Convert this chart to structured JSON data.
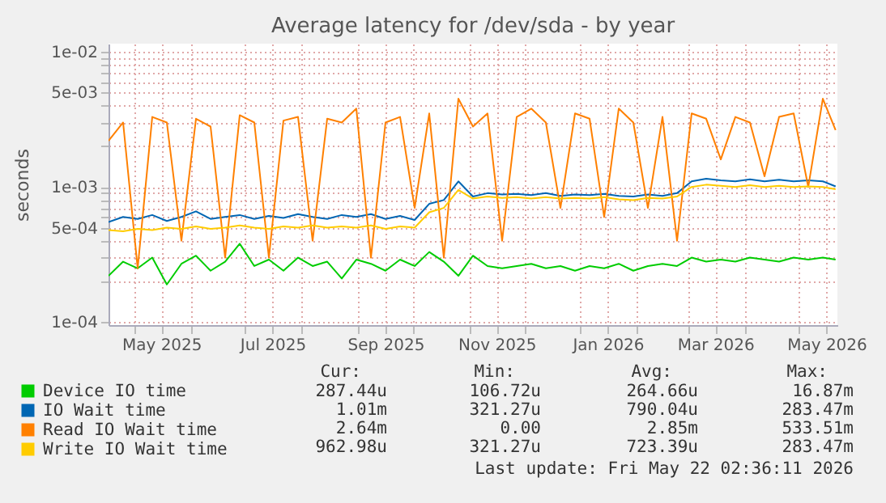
{
  "chart_data": {
    "type": "line",
    "title": "Average latency for /dev/sda - by year",
    "ylabel": "seconds",
    "log": "y",
    "grid": true,
    "legend": "bottom",
    "marker": "none",
    "line_style": "solid",
    "x": [
      "2025-04-17",
      "2025-04-25",
      "2025-05-03",
      "2025-05-11",
      "2025-05-19",
      "2025-05-27",
      "2025-06-04",
      "2025-06-12",
      "2025-06-20",
      "2025-06-28",
      "2025-07-06",
      "2025-07-14",
      "2025-07-22",
      "2025-07-30",
      "2025-08-07",
      "2025-08-15",
      "2025-08-23",
      "2025-08-31",
      "2025-09-08",
      "2025-09-16",
      "2025-09-24",
      "2025-10-02",
      "2025-10-10",
      "2025-10-18",
      "2025-10-26",
      "2025-11-03",
      "2025-11-11",
      "2025-11-19",
      "2025-11-27",
      "2025-12-05",
      "2025-12-13",
      "2025-12-21",
      "2025-12-29",
      "2026-01-06",
      "2026-01-14",
      "2026-01-22",
      "2026-01-30",
      "2026-02-07",
      "2026-02-15",
      "2026-02-23",
      "2026-03-03",
      "2026-03-11",
      "2026-03-19",
      "2026-03-27",
      "2026-04-04",
      "2026-04-12",
      "2026-04-20",
      "2026-04-28",
      "2026-05-06",
      "2026-05-14",
      "2026-05-21"
    ],
    "xlim": [
      "2025-04-17",
      "2026-05-22"
    ],
    "xticks": [
      {
        "value": "2025-05-01",
        "label": null
      },
      {
        "value": "2025-05-16",
        "label": "May 2025"
      },
      {
        "value": "2025-06-01",
        "label": null
      },
      {
        "value": "2025-07-01",
        "label": null
      },
      {
        "value": "2025-07-16",
        "label": "Jul 2025"
      },
      {
        "value": "2025-08-01",
        "label": null
      },
      {
        "value": "2025-09-01",
        "label": null
      },
      {
        "value": "2025-09-16",
        "label": "Sep 2025"
      },
      {
        "value": "2025-10-01",
        "label": null
      },
      {
        "value": "2025-11-01",
        "label": null
      },
      {
        "value": "2025-11-16",
        "label": "Nov 2025"
      },
      {
        "value": "2025-12-01",
        "label": null
      },
      {
        "value": "2026-01-01",
        "label": null
      },
      {
        "value": "2026-01-16",
        "label": "Jan 2026"
      },
      {
        "value": "2026-02-01",
        "label": null
      },
      {
        "value": "2026-03-01",
        "label": null
      },
      {
        "value": "2026-03-16",
        "label": "Mar 2026"
      },
      {
        "value": "2026-04-01",
        "label": null
      },
      {
        "value": "2026-05-01",
        "label": null
      },
      {
        "value": "2026-05-16",
        "label": "May 2026"
      }
    ],
    "ylim": [
      9.5e-05,
      0.0115
    ],
    "yticks": [
      {
        "value": 0.0001,
        "label": "1e-04"
      },
      {
        "value": 0.0002,
        "label": null
      },
      {
        "value": 0.0003,
        "label": null
      },
      {
        "value": 0.0004,
        "label": null
      },
      {
        "value": 0.0005,
        "label": "5e-04"
      },
      {
        "value": 0.0006,
        "label": null
      },
      {
        "value": 0.0007,
        "label": null
      },
      {
        "value": 0.0008,
        "label": null
      },
      {
        "value": 0.0009,
        "label": null
      },
      {
        "value": 0.001,
        "label": "1e-03"
      },
      {
        "value": 0.002,
        "label": null
      },
      {
        "value": 0.003,
        "label": null
      },
      {
        "value": 0.004,
        "label": null
      },
      {
        "value": 0.005,
        "label": "5e-03"
      },
      {
        "value": 0.006,
        "label": null
      },
      {
        "value": 0.007,
        "label": null
      },
      {
        "value": 0.008,
        "label": null
      },
      {
        "value": 0.009,
        "label": null
      },
      {
        "value": 0.01,
        "label": "1e-02"
      }
    ],
    "series": [
      {
        "name": "Device IO time",
        "color": "#00cc00",
        "values": [
          0.00022,
          0.00028,
          0.00025,
          0.0003,
          0.00019,
          0.00027,
          0.00031,
          0.00024,
          0.00028,
          0.00038,
          0.00026,
          0.00029,
          0.00024,
          0.0003,
          0.00026,
          0.00028,
          0.00021,
          0.00029,
          0.00027,
          0.00024,
          0.00029,
          0.00026,
          0.00033,
          0.00028,
          0.00022,
          0.00031,
          0.00026,
          0.00025,
          0.00026,
          0.00027,
          0.00025,
          0.00026,
          0.00024,
          0.00026,
          0.00025,
          0.00027,
          0.00024,
          0.00026,
          0.00027,
          0.00026,
          0.0003,
          0.00028,
          0.00029,
          0.00028,
          0.0003,
          0.00029,
          0.00028,
          0.0003,
          0.00029,
          0.0003,
          0.00029
        ]
      },
      {
        "name": "IO Wait time",
        "color": "#0066b3",
        "values": [
          0.00055,
          0.0006,
          0.00058,
          0.00062,
          0.00056,
          0.0006,
          0.00066,
          0.00058,
          0.0006,
          0.00062,
          0.00058,
          0.00061,
          0.00059,
          0.00063,
          0.0006,
          0.00058,
          0.00062,
          0.0006,
          0.00063,
          0.00058,
          0.00061,
          0.00057,
          0.00075,
          0.0008,
          0.0011,
          0.00085,
          0.0009,
          0.00088,
          0.00089,
          0.00087,
          0.0009,
          0.00086,
          0.00088,
          0.00087,
          0.00089,
          0.00086,
          0.00085,
          0.00088,
          0.00086,
          0.0009,
          0.0011,
          0.00115,
          0.00112,
          0.0011,
          0.00114,
          0.0011,
          0.00113,
          0.0011,
          0.00112,
          0.0011,
          0.00101
        ]
      },
      {
        "name": "Read IO Wait time",
        "color": "#ff8000",
        "values": [
          0.0022,
          0.003,
          0.00025,
          0.0033,
          0.003,
          0.0004,
          0.0032,
          0.0028,
          0.0003,
          0.0034,
          0.003,
          0.0003,
          0.0031,
          0.0033,
          0.0004,
          0.0032,
          0.003,
          0.0038,
          0.0003,
          0.003,
          0.0033,
          0.0007,
          0.0035,
          0.0003,
          0.0045,
          0.0028,
          0.0035,
          0.0004,
          0.0033,
          0.0038,
          0.003,
          0.0007,
          0.0035,
          0.0032,
          0.0006,
          0.0038,
          0.003,
          0.0007,
          0.0033,
          0.0004,
          0.0035,
          0.0032,
          0.0016,
          0.0033,
          0.003,
          0.0012,
          0.0033,
          0.0035,
          0.001,
          0.0045,
          0.00264
        ]
      },
      {
        "name": "Write IO Wait time",
        "color": "#ffcc00",
        "values": [
          0.00048,
          0.00047,
          0.00049,
          0.00048,
          0.0005,
          0.00049,
          0.00051,
          0.00049,
          0.0005,
          0.00052,
          0.0005,
          0.00049,
          0.00051,
          0.0005,
          0.00052,
          0.0005,
          0.00051,
          0.0005,
          0.00052,
          0.00049,
          0.00051,
          0.0005,
          0.00065,
          0.0007,
          0.00095,
          0.00082,
          0.00085,
          0.00083,
          0.00084,
          0.00082,
          0.00084,
          0.00082,
          0.00083,
          0.00082,
          0.00084,
          0.00081,
          0.0008,
          0.00083,
          0.00082,
          0.00085,
          0.001,
          0.00104,
          0.00102,
          0.001,
          0.00103,
          0.001,
          0.00102,
          0.001,
          0.00101,
          0.001,
          0.000963
        ]
      }
    ],
    "annotations": [
      "Cur:",
      "Min:",
      "Avg:",
      "Max:",
      "287.44u",
      "106.72u",
      "264.66u",
      "16.87m",
      "1.01m",
      "321.27u",
      "790.04u",
      "283.47m",
      "2.64m",
      "0.00",
      "2.85m",
      "533.51m",
      "962.98u",
      "321.27u",
      "723.39u",
      "283.47m",
      "Last update: Fri May 22 02:36:11 2026"
    ]
  }
}
